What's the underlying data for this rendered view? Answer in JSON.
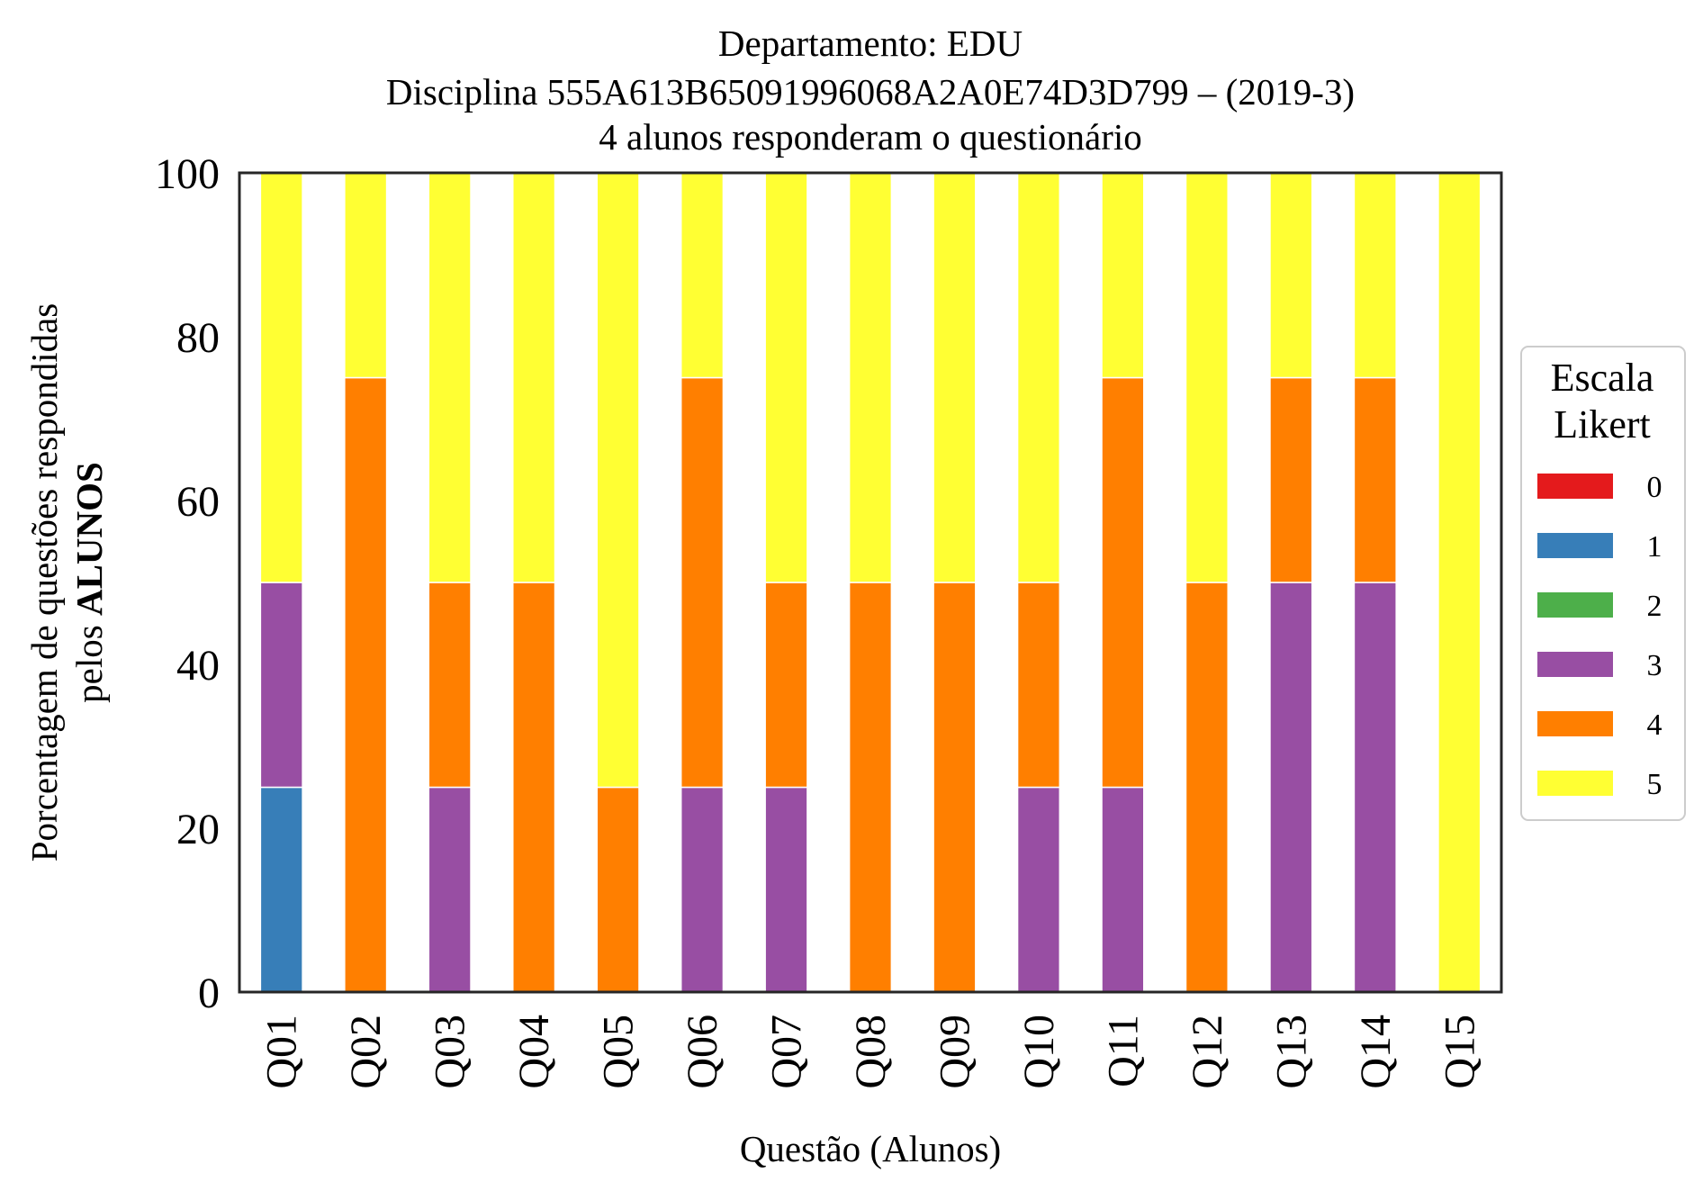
{
  "chart_data": {
    "type": "bar",
    "stacked": true,
    "title_lines": [
      "Departamento: EDU",
      "Disciplina 555A613B65091996068A2A0E74D3D799 – (2019-3)",
      "4 alunos responderam o questionário"
    ],
    "xlabel": "Questão (Alunos)",
    "ylabel_line1": "Porcentagem de questões respondidas",
    "ylabel_line2_prefix": "pelos ",
    "ylabel_line2_bold": "ALUNOS",
    "ylim": [
      0,
      100
    ],
    "yticks": [
      "0",
      "20",
      "40",
      "60",
      "80",
      "100"
    ],
    "grid": false,
    "legend_position": "right",
    "legend_title_lines": [
      "Escala",
      "Likert"
    ],
    "categories": [
      "Q01",
      "Q02",
      "Q03",
      "Q04",
      "Q05",
      "Q06",
      "Q07",
      "Q08",
      "Q09",
      "Q10",
      "Q11",
      "Q12",
      "Q13",
      "Q14",
      "Q15"
    ],
    "series": [
      {
        "name": "0",
        "color": "#e41a1c",
        "values": [
          0,
          0,
          0,
          0,
          0,
          0,
          0,
          0,
          0,
          0,
          0,
          0,
          0,
          0,
          0
        ]
      },
      {
        "name": "1",
        "color": "#377eb8",
        "values": [
          25,
          0,
          0,
          0,
          0,
          0,
          0,
          0,
          0,
          0,
          0,
          0,
          0,
          0,
          0
        ]
      },
      {
        "name": "2",
        "color": "#4daf4a",
        "values": [
          0,
          0,
          0,
          0,
          0,
          0,
          0,
          0,
          0,
          0,
          0,
          0,
          0,
          0,
          0
        ]
      },
      {
        "name": "3",
        "color": "#984ea3",
        "values": [
          25,
          0,
          25,
          0,
          0,
          25,
          25,
          0,
          0,
          25,
          25,
          0,
          50,
          50,
          0
        ]
      },
      {
        "name": "4",
        "color": "#ff7f00",
        "values": [
          0,
          75,
          25,
          50,
          25,
          50,
          25,
          50,
          50,
          25,
          50,
          50,
          25,
          25,
          0
        ]
      },
      {
        "name": "5",
        "color": "#ffff33",
        "values": [
          50,
          25,
          50,
          50,
          75,
          25,
          50,
          50,
          50,
          50,
          25,
          50,
          25,
          25,
          100
        ]
      }
    ]
  }
}
